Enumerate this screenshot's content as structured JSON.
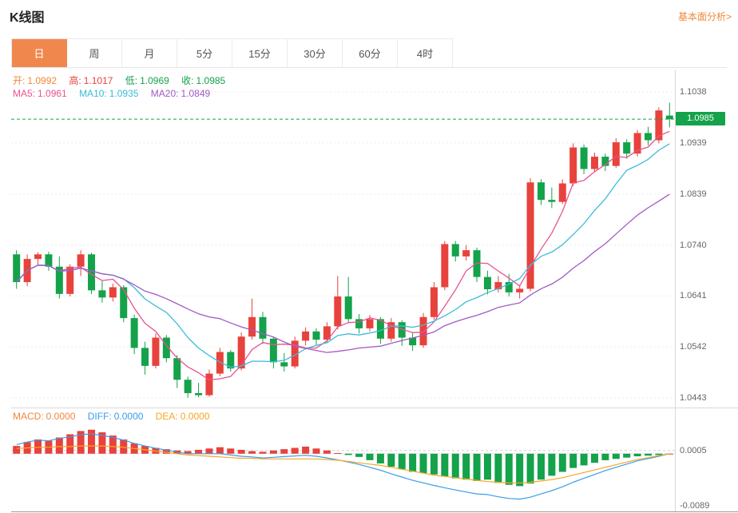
{
  "header": {
    "title": "K线图",
    "analysis_link": "基本面分析>"
  },
  "tabs": {
    "items": [
      {
        "label": "日",
        "active": true
      },
      {
        "label": "周",
        "active": false
      },
      {
        "label": "月",
        "active": false
      },
      {
        "label": "5分",
        "active": false
      },
      {
        "label": "15分",
        "active": false
      },
      {
        "label": "30分",
        "active": false
      },
      {
        "label": "60分",
        "active": false
      },
      {
        "label": "4时",
        "active": false
      }
    ]
  },
  "main_chart": {
    "legend_ohlc": [
      {
        "label": "开:",
        "value": "1.0992",
        "color": "#f0883a"
      },
      {
        "label": "高:",
        "value": "1.1017",
        "color": "#e8423c"
      },
      {
        "label": "低:",
        "value": "1.0969",
        "color": "#14a24a"
      },
      {
        "label": "收:",
        "value": "1.0985",
        "color": "#14a24a"
      }
    ],
    "legend_ma": [
      {
        "label": "MA5:",
        "value": "1.0961",
        "color": "#e8538f"
      },
      {
        "label": "MA10:",
        "value": "1.0935",
        "color": "#3bbcd9"
      },
      {
        "label": "MA20:",
        "value": "1.0849",
        "color": "#a259c4"
      }
    ],
    "y_axis_labels": [
      "1.1038",
      "1.0939",
      "1.0839",
      "1.0740",
      "1.0641",
      "1.0542",
      "1.0443"
    ],
    "current_price_label": "1.0985"
  },
  "macd_panel": {
    "legend": [
      {
        "label": "MACD:",
        "value": "0.0000",
        "color": "#f0883a"
      },
      {
        "label": "DIFF:",
        "value": "0.0000",
        "color": "#3b9de8"
      },
      {
        "label": "DEA:",
        "value": "0.0000",
        "color": "#f5a623"
      }
    ],
    "y_axis_labels": [
      "0.0005",
      "-0.0089"
    ]
  },
  "chart_data": {
    "type": "candlestick",
    "title": "K线图",
    "price_axis": {
      "min": 1.0424,
      "max": 1.108,
      "gridlines": [
        1.1038,
        1.0939,
        1.0839,
        1.074,
        1.0641,
        1.0542,
        1.0443
      ]
    },
    "current_price": 1.0985,
    "last_ohlc": {
      "open": 1.0992,
      "high": 1.1017,
      "low": 1.0969,
      "close": 1.0985
    },
    "ma_periods": [
      5,
      10,
      20
    ],
    "ma_last_values": {
      "ma5": 1.0961,
      "ma10": 1.0935,
      "ma20": 1.0849
    },
    "candles": [
      [
        1.0722,
        1.073,
        1.0655,
        1.0668
      ],
      [
        1.0668,
        1.0722,
        1.066,
        1.0713
      ],
      [
        1.0713,
        1.0726,
        1.07,
        1.0722
      ],
      [
        1.0722,
        1.0727,
        1.069,
        1.0698
      ],
      [
        1.0698,
        1.0718,
        1.0636,
        1.0645
      ],
      [
        1.0645,
        1.0703,
        1.064,
        1.0698
      ],
      [
        1.0698,
        1.073,
        1.068,
        1.0722
      ],
      [
        1.0722,
        1.0725,
        1.0645,
        1.0652
      ],
      [
        1.0652,
        1.067,
        1.0628,
        1.0638
      ],
      [
        1.0638,
        1.0665,
        1.063,
        1.0658
      ],
      [
        1.0658,
        1.0662,
        1.059,
        1.0598
      ],
      [
        1.0598,
        1.0605,
        1.0528,
        1.054
      ],
      [
        1.054,
        1.0552,
        1.0488,
        1.0505
      ],
      [
        1.0505,
        1.0568,
        1.05,
        1.056
      ],
      [
        1.056,
        1.0565,
        1.0512,
        1.052
      ],
      [
        1.052,
        1.0526,
        1.0462,
        1.0478
      ],
      [
        1.0478,
        1.0484,
        1.0443,
        1.0452
      ],
      [
        1.0452,
        1.0472,
        1.0444,
        1.0448
      ],
      [
        1.0448,
        1.0498,
        1.0445,
        1.049
      ],
      [
        1.049,
        1.054,
        1.0485,
        1.0532
      ],
      [
        1.0532,
        1.0536,
        1.0494,
        1.05
      ],
      [
        1.05,
        1.057,
        1.0496,
        1.0562
      ],
      [
        1.0562,
        1.0636,
        1.0556,
        1.06
      ],
      [
        1.06,
        1.061,
        1.0548,
        1.0558
      ],
      [
        1.0558,
        1.0562,
        1.05,
        1.0512
      ],
      [
        1.0512,
        1.053,
        1.0494,
        1.0504
      ],
      [
        1.0504,
        1.0562,
        1.05,
        1.0554
      ],
      [
        1.0554,
        1.058,
        1.0545,
        1.0572
      ],
      [
        1.0572,
        1.0578,
        1.0546,
        1.0556
      ],
      [
        1.0556,
        1.059,
        1.055,
        1.0582
      ],
      [
        1.0582,
        1.068,
        1.0576,
        1.064
      ],
      [
        1.064,
        1.0678,
        1.0588,
        1.0596
      ],
      [
        1.0596,
        1.0606,
        1.0568,
        1.0578
      ],
      [
        1.0578,
        1.0604,
        1.0572,
        1.0596
      ],
      [
        1.0596,
        1.06,
        1.0548,
        1.0558
      ],
      [
        1.0558,
        1.0598,
        1.0552,
        1.059
      ],
      [
        1.059,
        1.0594,
        1.0544,
        1.056
      ],
      [
        1.056,
        1.057,
        1.0534,
        1.0545
      ],
      [
        1.0545,
        1.0608,
        1.054,
        1.06
      ],
      [
        1.06,
        1.0668,
        1.0595,
        1.0658
      ],
      [
        1.0658,
        1.0748,
        1.0652,
        1.0742
      ],
      [
        1.0742,
        1.0748,
        1.0708,
        1.0718
      ],
      [
        1.0718,
        1.074,
        1.071,
        1.073
      ],
      [
        1.073,
        1.0735,
        1.0668,
        1.0678
      ],
      [
        1.0678,
        1.069,
        1.0644,
        1.0654
      ],
      [
        1.0654,
        1.068,
        1.0648,
        1.0668
      ],
      [
        1.0668,
        1.0684,
        1.064,
        1.0648
      ],
      [
        1.0648,
        1.066,
        1.0636,
        1.0655
      ],
      [
        1.0655,
        1.087,
        1.065,
        1.0862
      ],
      [
        1.0862,
        1.0868,
        1.0818,
        1.0828
      ],
      [
        1.0828,
        1.0852,
        1.0812,
        1.0824
      ],
      [
        1.0824,
        1.0868,
        1.082,
        1.086
      ],
      [
        1.086,
        1.0938,
        1.0855,
        1.093
      ],
      [
        1.093,
        1.0936,
        1.0878,
        1.0888
      ],
      [
        1.0888,
        1.092,
        1.0882,
        1.0912
      ],
      [
        1.0912,
        1.0918,
        1.0884,
        1.0894
      ],
      [
        1.0894,
        1.0948,
        1.089,
        1.094
      ],
      [
        1.094,
        1.0946,
        1.0908,
        1.0918
      ],
      [
        1.0918,
        1.0964,
        1.0912,
        1.0958
      ],
      [
        1.0958,
        1.097,
        1.0934,
        1.0944
      ],
      [
        1.0944,
        1.1008,
        1.0938,
        1.1002
      ],
      [
        1.0992,
        1.1017,
        1.0969,
        1.0985
      ]
    ],
    "macd": {
      "axis": {
        "min": -0.0089,
        "max": 0.007,
        "gridline": 0.0005
      },
      "hist": [
        0.0012,
        0.0018,
        0.0022,
        0.002,
        0.0025,
        0.003,
        0.0035,
        0.0037,
        0.0033,
        0.0028,
        0.0022,
        0.0016,
        0.0012,
        0.0009,
        0.0007,
        0.0005,
        0.0004,
        0.0006,
        0.0008,
        0.001,
        0.0008,
        0.0006,
        0.0004,
        0.0003,
        0.0005,
        0.0007,
        0.0009,
        0.0011,
        0.0008,
        0.0005,
        0.0001,
        -0.0002,
        -0.0005,
        -0.001,
        -0.0015,
        -0.002,
        -0.0024,
        -0.0028,
        -0.003,
        -0.0032,
        -0.0035,
        -0.0038,
        -0.004,
        -0.0042,
        -0.004,
        -0.0045,
        -0.0048,
        -0.005,
        -0.0046,
        -0.004,
        -0.0034,
        -0.0028,
        -0.0022,
        -0.0018,
        -0.0014,
        -0.001,
        -0.0008,
        -0.0006,
        -0.0004,
        -0.0003,
        -0.0002,
        0.0
      ],
      "diff": [
        0.0014,
        0.0018,
        0.0021,
        0.002,
        0.00235,
        0.0026,
        0.00295,
        0.00305,
        0.00285,
        0.0025,
        0.0021,
        0.0016,
        0.0012,
        0.00085,
        0.00055,
        0.00025,
        0.0,
        0.0,
        0.0,
        0.0,
        -0.0002,
        -0.0004,
        -0.0005,
        -0.00065,
        -0.00055,
        -0.00045,
        -0.00035,
        -0.00025,
        -0.0004,
        -0.00065,
        -0.00095,
        -0.0013,
        -0.00165,
        -0.0021,
        -0.00255,
        -0.0031,
        -0.0036,
        -0.0041,
        -0.0045,
        -0.0049,
        -0.00525,
        -0.0056,
        -0.0059,
        -0.0062,
        -0.0063,
        -0.00665,
        -0.0069,
        -0.007,
        -0.0067,
        -0.0062,
        -0.0057,
        -0.0051,
        -0.0044,
        -0.0038,
        -0.0032,
        -0.0026,
        -0.0021,
        -0.0016,
        -0.0011,
        -0.00075,
        -0.0004,
        0.0
      ],
      "dea": [
        0.0008,
        0.0009,
        0.001,
        0.001,
        0.0011,
        0.0011,
        0.0012,
        0.0012,
        0.0012,
        0.0011,
        0.001,
        0.0008,
        0.0006,
        0.0004,
        0.0002,
        0.0,
        -0.0002,
        -0.0003,
        -0.0004,
        -0.0005,
        -0.0006,
        -0.0007,
        -0.0007,
        -0.0008,
        -0.0008,
        -0.0008,
        -0.0008,
        -0.0008,
        -0.0008,
        -0.0009,
        -0.001,
        -0.0012,
        -0.0014,
        -0.0016,
        -0.0018,
        -0.0021,
        -0.0024,
        -0.0027,
        -0.003,
        -0.0033,
        -0.0035,
        -0.0037,
        -0.0039,
        -0.0041,
        -0.0043,
        -0.0044,
        -0.0045,
        -0.0045,
        -0.0044,
        -0.0042,
        -0.004,
        -0.0037,
        -0.0033,
        -0.0029,
        -0.0025,
        -0.0021,
        -0.0017,
        -0.0013,
        -0.0009,
        -0.0006,
        -0.0003,
        0.0
      ]
    },
    "colors": {
      "up": "#e8423c",
      "down": "#14a24a",
      "ma5": "#e8538f",
      "ma10": "#3bbcd9",
      "ma20": "#a259c4",
      "diff": "#3b9de8",
      "dea": "#f5a623",
      "price_line": "#14a24a",
      "grid": "#ececec"
    },
    "legend_position": "top-left",
    "grid": true
  }
}
